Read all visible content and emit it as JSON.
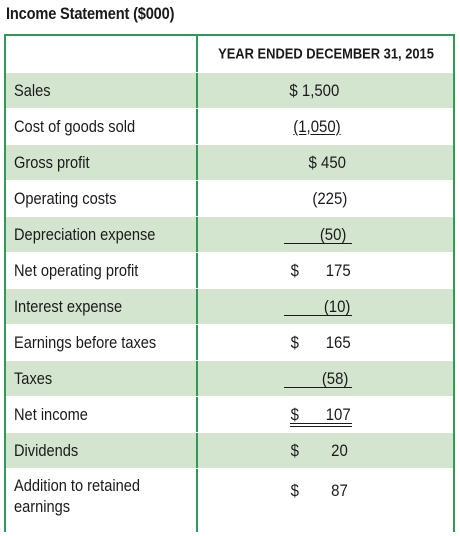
{
  "title": "Income Statement ($000)",
  "column_header": "YEAR ENDED DECEMBER 31, 2015",
  "rows": [
    {
      "label": "Sales",
      "value": "$ 1,500"
    },
    {
      "label": "Cost of goods sold",
      "value": "(1,050)"
    },
    {
      "label": "Gross profit",
      "value": "$ 450"
    },
    {
      "label": "Operating costs",
      "value": "(225)"
    },
    {
      "label": "Depreciation expense",
      "value": "(50)"
    },
    {
      "label": "Net operating profit",
      "dollar": "$",
      "value": "175"
    },
    {
      "label": "Interest expense",
      "value": "(10)"
    },
    {
      "label": "Earnings before taxes",
      "dollar": "$",
      "value": "165"
    },
    {
      "label": "Taxes",
      "value": "(58)"
    },
    {
      "label": "Net income",
      "dollar": "$",
      "value": "107"
    },
    {
      "label": "Dividends",
      "dollar": "$",
      "value": "20"
    },
    {
      "label": "Addition to retained earnings",
      "label_line1": "Addition to retained",
      "label_line2": "earnings",
      "dollar": "$",
      "value": "87"
    }
  ]
}
